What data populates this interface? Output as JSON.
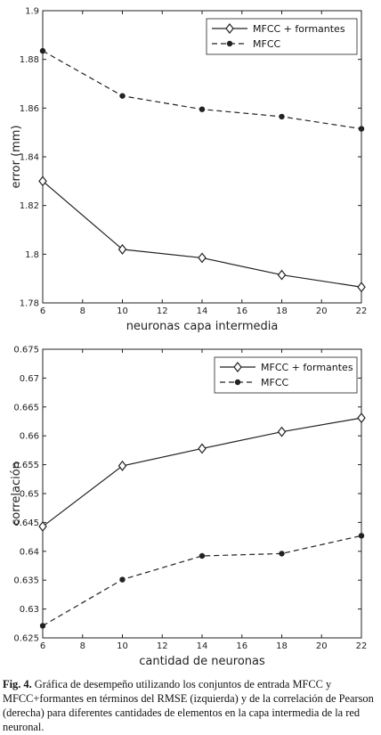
{
  "chart_data": [
    {
      "type": "line",
      "title": "",
      "xlabel": "neuronas capa intermedia",
      "ylabel": "error (mm)",
      "x": [
        6,
        10,
        14,
        18,
        22
      ],
      "xlim": [
        6,
        22
      ],
      "ylim": [
        1.78,
        1.9
      ],
      "xticks": [
        "6",
        "8",
        "10",
        "12",
        "14",
        "16",
        "18",
        "20",
        "22"
      ],
      "yticks": [
        "1.78",
        "1.8",
        "1.82",
        "1.84",
        "1.86",
        "1.88",
        "1.9"
      ],
      "grid": false,
      "legend_position": "top-right",
      "series": [
        {
          "name": "MFCC + formantes",
          "style": "solid-diamond",
          "values": [
            1.83,
            1.802,
            1.7985,
            1.7915,
            1.7865
          ]
        },
        {
          "name": "MFCC",
          "style": "dashed-dot",
          "values": [
            1.8835,
            1.865,
            1.8595,
            1.8565,
            1.8515
          ]
        }
      ]
    },
    {
      "type": "line",
      "title": "",
      "xlabel": "cantidad de neuronas",
      "ylabel": "correlación",
      "x": [
        6,
        10,
        14,
        18,
        22
      ],
      "xlim": [
        6,
        22
      ],
      "ylim": [
        0.625,
        0.675
      ],
      "xticks": [
        "6",
        "8",
        "10",
        "12",
        "14",
        "16",
        "18",
        "20",
        "22"
      ],
      "yticks": [
        "0.625",
        "0.63",
        "0.635",
        "0.64",
        "0.645",
        "0.65",
        "0.655",
        "0.66",
        "0.665",
        "0.67",
        "0.675"
      ],
      "grid": false,
      "legend_position": "top-right",
      "series": [
        {
          "name": "MFCC + formantes",
          "style": "solid-diamond",
          "values": [
            0.6443,
            0.6548,
            0.6578,
            0.6607,
            0.6631
          ]
        },
        {
          "name": "MFCC",
          "style": "dashed-dot",
          "values": [
            0.6271,
            0.6351,
            0.6392,
            0.6396,
            0.6427
          ]
        }
      ]
    }
  ],
  "caption": {
    "label": "Fig. 4.",
    "text": " Gráfica de desempeño utilizando los conjuntos de entrada MFCC y MFCC+formantes en términos del RMSE (izquierda) y de la correlación de Pearson (derecha) para diferentes cantidades de elementos en la capa intermedia de la red neuronal."
  },
  "colors": {
    "line": "#222222",
    "axis": "#222222"
  }
}
